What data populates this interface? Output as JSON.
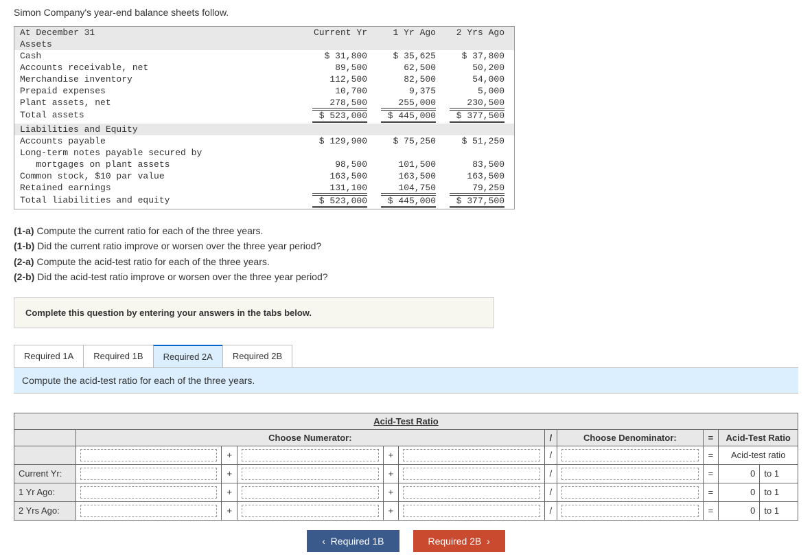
{
  "intro": "Simon Company's year-end balance sheets follow.",
  "balance_sheet": {
    "header": {
      "label": "At December 31",
      "col1": "Current Yr",
      "col2": "1 Yr Ago",
      "col3": "2 Yrs Ago"
    },
    "assets_header": "Assets",
    "rows_assets": [
      {
        "label": "Cash",
        "c1": "$   31,800",
        "c2": "$   35,625",
        "c3": "$   37,800"
      },
      {
        "label": "Accounts receivable, net",
        "c1": "89,500",
        "c2": "62,500",
        "c3": "50,200"
      },
      {
        "label": "Merchandise inventory",
        "c1": "112,500",
        "c2": "82,500",
        "c3": "54,000"
      },
      {
        "label": "Prepaid expenses",
        "c1": "10,700",
        "c2": "9,375",
        "c3": "5,000"
      },
      {
        "label": "Plant assets, net",
        "c1": "278,500",
        "c2": "255,000",
        "c3": "230,500"
      }
    ],
    "total_assets": {
      "label": "Total assets",
      "c1": "$ 523,000",
      "c2": "$ 445,000",
      "c3": "$ 377,500"
    },
    "liab_header": "Liabilities and Equity",
    "rows_liab": [
      {
        "label": "Accounts payable",
        "c1": "$ 129,900",
        "c2": "$   75,250",
        "c3": "$   51,250"
      },
      {
        "label": "Long-term notes payable secured by",
        "c1": "",
        "c2": "",
        "c3": ""
      },
      {
        "label": "   mortgages on plant assets",
        "c1": "98,500",
        "c2": "101,500",
        "c3": "83,500"
      },
      {
        "label": "Common stock, $10 par value",
        "c1": "163,500",
        "c2": "163,500",
        "c3": "163,500"
      },
      {
        "label": "Retained earnings",
        "c1": "131,100",
        "c2": "104,750",
        "c3": "79,250"
      }
    ],
    "total_liab": {
      "label": "Total liabilities and equity",
      "c1": "$ 523,000",
      "c2": "$ 445,000",
      "c3": "$ 377,500"
    }
  },
  "questions": {
    "q1a_tag": "(1-a)",
    "q1a": " Compute the current ratio for each of the three years.",
    "q1b_tag": "(1-b)",
    "q1b": " Did the current ratio improve or worsen over the three year period?",
    "q2a_tag": "(2-a)",
    "q2a": " Compute the acid-test ratio for each of the three years.",
    "q2b_tag": "(2-b)",
    "q2b": " Did the acid-test ratio improve or worsen over the three year period?"
  },
  "instruction": "Complete this question by entering your answers in the tabs below.",
  "tabs": {
    "t1": "Required 1A",
    "t2": "Required 1B",
    "t3": "Required 2A",
    "t4": "Required 2B"
  },
  "tab_instruction": "Compute the acid-test ratio for each of the three years.",
  "ratio_table": {
    "title": "Acid-Test Ratio",
    "numerator": "Choose Numerator:",
    "slash": "/",
    "denominator": "Choose Denominator:",
    "equals": "=",
    "result_header": "Acid-Test Ratio",
    "plus": "+",
    "row2_result": "Acid-test ratio",
    "rows": [
      {
        "label": "Current Yr:",
        "result": "0",
        "suffix": "to 1"
      },
      {
        "label": "1 Yr Ago:",
        "result": "0",
        "suffix": "to 1"
      },
      {
        "label": "2 Yrs Ago:",
        "result": "0",
        "suffix": "to 1"
      }
    ]
  },
  "nav": {
    "prev": "Required 1B",
    "next": "Required 2B"
  }
}
